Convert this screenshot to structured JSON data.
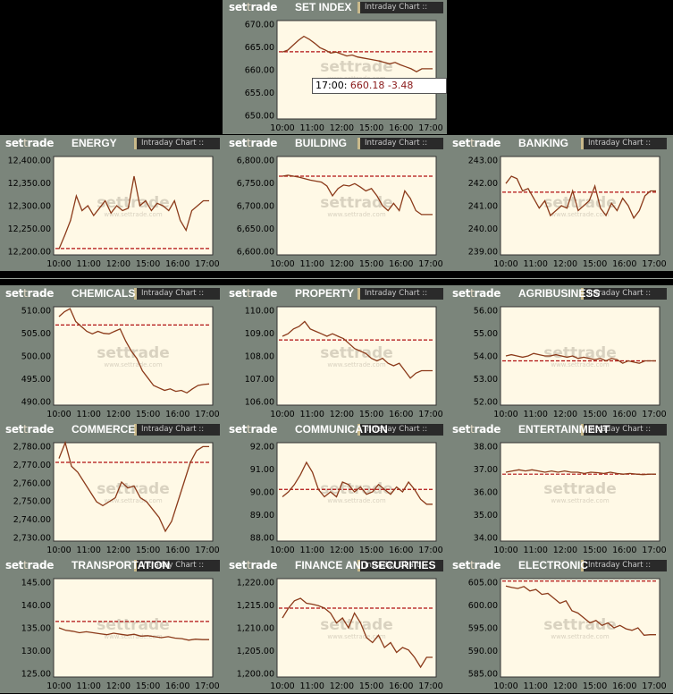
{
  "logo": {
    "set": "set",
    "t": "t",
    "rade": "rade"
  },
  "badge_label": "Intraday Chart",
  "watermark": {
    "brand": "settrade",
    "site": "www.settrade.com"
  },
  "tooltip": {
    "time": "17:00",
    "value": "660.18",
    "change": "-3.48"
  },
  "colors": {
    "line": "#8b3a1a",
    "baseline": "#b01010",
    "plot_bg": "#fff9e6",
    "panel_bg": "#7b857b"
  },
  "chart_data": [
    {
      "id": "set-index",
      "type": "line",
      "title": "SET INDEX",
      "yticks": [
        "670.00",
        "665.00",
        "660.00",
        "655.00",
        "650.00"
      ],
      "ylim": [
        650,
        670
      ],
      "xticks": [
        "10:00",
        "11:00",
        "12:00",
        "15:00",
        "16:00",
        "17:00"
      ],
      "prev_close": 663.66,
      "values": [
        663.6,
        664,
        665,
        666,
        666.8,
        666.2,
        665.4,
        664.5,
        664,
        663.4,
        663.6,
        663.2,
        662.8,
        663,
        662.6,
        662.4,
        662.2,
        662,
        661.8,
        661.5,
        661.2,
        661.5,
        661,
        660.6,
        660.2,
        659.6,
        660.2,
        660.2,
        660.2
      ]
    },
    {
      "id": "energy",
      "type": "line",
      "title": "ENERGY",
      "yticks": [
        "12,400.00",
        "12,350.00",
        "12,300.00",
        "12,250.00",
        "12,200.00"
      ],
      "ylim": [
        12200,
        12400
      ],
      "xticks": [
        "10:00",
        "11:00",
        "12:00",
        "15:00",
        "16:00",
        "17:00"
      ],
      "prev_close": 12213,
      "values": [
        12212,
        12240,
        12270,
        12320,
        12290,
        12300,
        12280,
        12295,
        12310,
        12285,
        12300,
        12290,
        12295,
        12360,
        12300,
        12310,
        12290,
        12305,
        12300,
        12290,
        12310,
        12270,
        12250,
        12290,
        12300,
        12310,
        12310
      ]
    },
    {
      "id": "building",
      "type": "line",
      "title": "BUILDING",
      "yticks": [
        "6,800.00",
        "6,750.00",
        "6,700.00",
        "6,650.00",
        "6,600.00"
      ],
      "ylim": [
        6600,
        6800
      ],
      "xticks": [
        "10:00",
        "11:00",
        "12:00",
        "15:00",
        "16:00",
        "17:00"
      ],
      "prev_close": 6760,
      "values": [
        6760,
        6762,
        6760,
        6758,
        6755,
        6752,
        6750,
        6748,
        6740,
        6720,
        6735,
        6742,
        6740,
        6745,
        6738,
        6730,
        6735,
        6720,
        6700,
        6690,
        6705,
        6690,
        6730,
        6715,
        6690,
        6682,
        6682,
        6682
      ]
    },
    {
      "id": "banking",
      "type": "line",
      "title": "BANKING",
      "yticks": [
        "243.00",
        "242.00",
        "241.00",
        "240.00",
        "239.00"
      ],
      "ylim": [
        239,
        243
      ],
      "xticks": [
        "10:00",
        "11:00",
        "12:00",
        "15:00",
        "16:00",
        "17:00"
      ],
      "prev_close": 241.55,
      "values": [
        241.9,
        242.2,
        242.1,
        241.6,
        241.7,
        241.3,
        240.9,
        241.2,
        240.6,
        240.8,
        241.0,
        240.9,
        241.6,
        240.8,
        241.0,
        241.2,
        241.8,
        240.9,
        240.6,
        241.1,
        240.8,
        241.3,
        241.0,
        240.5,
        240.8,
        241.4,
        241.6,
        241.6
      ]
    },
    {
      "id": "chemicals",
      "type": "line",
      "title": "CHEMICALS",
      "yticks": [
        "510.00",
        "505.00",
        "500.00",
        "495.00",
        "490.00"
      ],
      "ylim": [
        490,
        510
      ],
      "xticks": [
        "10:00",
        "11:00",
        "12:00",
        "15:00",
        "16:00",
        "17:00"
      ],
      "prev_close": 506.3,
      "values": [
        508,
        509,
        509.6,
        507,
        506,
        505,
        504.5,
        505,
        504.6,
        504.5,
        505,
        505.5,
        503,
        501,
        499.5,
        497,
        495.5,
        494,
        493.5,
        493,
        493.3,
        492.8,
        493,
        492.5,
        493.3,
        494,
        494.2,
        494.3
      ]
    },
    {
      "id": "property",
      "type": "line",
      "title": "PROPERTY",
      "yticks": [
        "110.00",
        "109.00",
        "108.00",
        "107.00",
        "106.00"
      ],
      "ylim": [
        106,
        110
      ],
      "xticks": [
        "10:00",
        "11:00",
        "12:00",
        "15:00",
        "16:00",
        "17:00"
      ],
      "prev_close": 108.65,
      "values": [
        108.8,
        108.9,
        109.1,
        109.2,
        109.4,
        109.1,
        109.0,
        108.9,
        108.8,
        108.9,
        108.8,
        108.7,
        108.5,
        108.3,
        108.2,
        108.1,
        107.9,
        107.8,
        107.9,
        107.7,
        107.6,
        107.7,
        107.4,
        107.1,
        107.3,
        107.4,
        107.4,
        107.4
      ]
    },
    {
      "id": "agribusiness",
      "type": "line",
      "title": "AGRIBUSINESS",
      "yticks": [
        "56.00",
        "55.00",
        "54.00",
        "53.00",
        "52.00"
      ],
      "ylim": [
        52,
        56
      ],
      "xticks": [
        "10:00",
        "11:00",
        "12:00",
        "15:00",
        "16:00",
        "17:00"
      ],
      "prev_close": 53.8,
      "values": [
        54.0,
        54.05,
        54.0,
        53.95,
        54.0,
        54.1,
        54.05,
        54.0,
        54.0,
        54.05,
        54.0,
        53.95,
        54.0,
        53.9,
        53.95,
        53.9,
        53.85,
        53.9,
        53.8,
        53.9,
        53.85,
        53.7,
        53.8,
        53.75,
        53.7,
        53.8,
        53.8,
        53.8
      ]
    },
    {
      "id": "commerce",
      "type": "line",
      "title": "COMMERCE",
      "yticks": [
        "2,780.00",
        "2,770.00",
        "2,760.00",
        "2,750.00",
        "2,740.00",
        "2,730.00"
      ],
      "ylim": [
        2730,
        2780
      ],
      "xticks": [
        "10:00",
        "11:00",
        "12:00",
        "15:00",
        "16:00",
        "17:00"
      ],
      "prev_close": 2770,
      "values": [
        2772,
        2780,
        2768,
        2765,
        2760,
        2755,
        2750,
        2748,
        2750,
        2752,
        2760,
        2757,
        2758,
        2752,
        2750,
        2746,
        2742,
        2735,
        2740,
        2750,
        2760,
        2770,
        2776,
        2778,
        2778
      ]
    },
    {
      "id": "communication",
      "type": "line",
      "title": "COMMUNICATION",
      "yticks": [
        "92.00",
        "91.00",
        "90.00",
        "89.00",
        "88.00"
      ],
      "ylim": [
        88,
        92
      ],
      "xticks": [
        "10:00",
        "11:00",
        "12:00",
        "15:00",
        "16:00",
        "17:00"
      ],
      "prev_close": 90.1,
      "values": [
        89.8,
        90.0,
        90.3,
        90.7,
        91.2,
        90.8,
        90.1,
        89.8,
        90.0,
        89.8,
        90.4,
        90.3,
        90.0,
        90.2,
        89.9,
        90.0,
        90.3,
        90.1,
        89.9,
        90.2,
        90.0,
        90.4,
        90.1,
        89.7,
        89.5,
        89.5
      ]
    },
    {
      "id": "entertainment",
      "type": "line",
      "title": "ENTERTAINMENT",
      "yticks": [
        "38.00",
        "37.00",
        "36.00",
        "35.00",
        "34.00"
      ],
      "ylim": [
        34,
        38
      ],
      "xticks": [
        "10:00",
        "11:00",
        "12:00",
        "15:00",
        "16:00",
        "17:00"
      ],
      "prev_close": 36.72,
      "values": [
        36.8,
        36.85,
        36.9,
        36.85,
        36.9,
        36.85,
        36.8,
        36.85,
        36.8,
        36.85,
        36.8,
        36.8,
        36.75,
        36.8,
        36.78,
        36.75,
        36.8,
        36.75,
        36.72,
        36.75,
        36.72,
        36.7,
        36.72,
        36.72
      ]
    },
    {
      "id": "transportation",
      "type": "line",
      "title": "TRANSPORTATION",
      "yticks": [
        "145.00",
        "140.00",
        "135.00",
        "130.00",
        "125.00"
      ],
      "ylim": [
        125,
        145
      ],
      "xticks": [
        "10:00",
        "11:00",
        "12:00",
        "15:00",
        "16:00",
        "17:00"
      ],
      "prev_close": 136.3,
      "values": [
        135.0,
        134.5,
        134.3,
        134.0,
        134.2,
        134.0,
        133.8,
        133.6,
        133.9,
        133.7,
        133.5,
        133.7,
        133.3,
        133.4,
        133.2,
        133.0,
        133.2,
        132.9,
        132.8,
        132.5,
        132.7,
        132.6,
        132.6
      ]
    },
    {
      "id": "finance-securities",
      "type": "line",
      "title": "FINANCE AND SECURITIES",
      "yticks": [
        "1,220.00",
        "1,215.00",
        "1,210.00",
        "1,205.00",
        "1,200.00"
      ],
      "ylim": [
        1200,
        1220
      ],
      "xticks": [
        "10:00",
        "11:00",
        "12:00",
        "15:00",
        "16:00",
        "17:00"
      ],
      "prev_close": 1214.0,
      "values": [
        1212,
        1214,
        1215.5,
        1216,
        1215,
        1214.8,
        1214.5,
        1214,
        1213,
        1211,
        1212,
        1210,
        1213,
        1211,
        1208,
        1207,
        1208.5,
        1206,
        1207,
        1205,
        1206,
        1205.5,
        1204,
        1202,
        1204,
        1204
      ]
    },
    {
      "id": "electronic",
      "type": "line",
      "title": "ELECTRONIC",
      "yticks": [
        "605.00",
        "600.00",
        "595.00",
        "590.00",
        "585.00"
      ],
      "ylim": [
        585,
        605
      ],
      "xticks": [
        "10:00",
        "11:00",
        "12:00",
        "15:00",
        "16:00",
        "17:00"
      ],
      "prev_close": 604.5,
      "values": [
        603.5,
        603.2,
        603,
        603.4,
        602.5,
        602.8,
        601.8,
        602,
        601,
        600,
        600.5,
        598.5,
        598,
        597,
        596,
        596.5,
        595.5,
        596,
        595,
        595.5,
        594.8,
        594.5,
        595,
        593.5,
        593.6,
        593.6
      ]
    }
  ]
}
